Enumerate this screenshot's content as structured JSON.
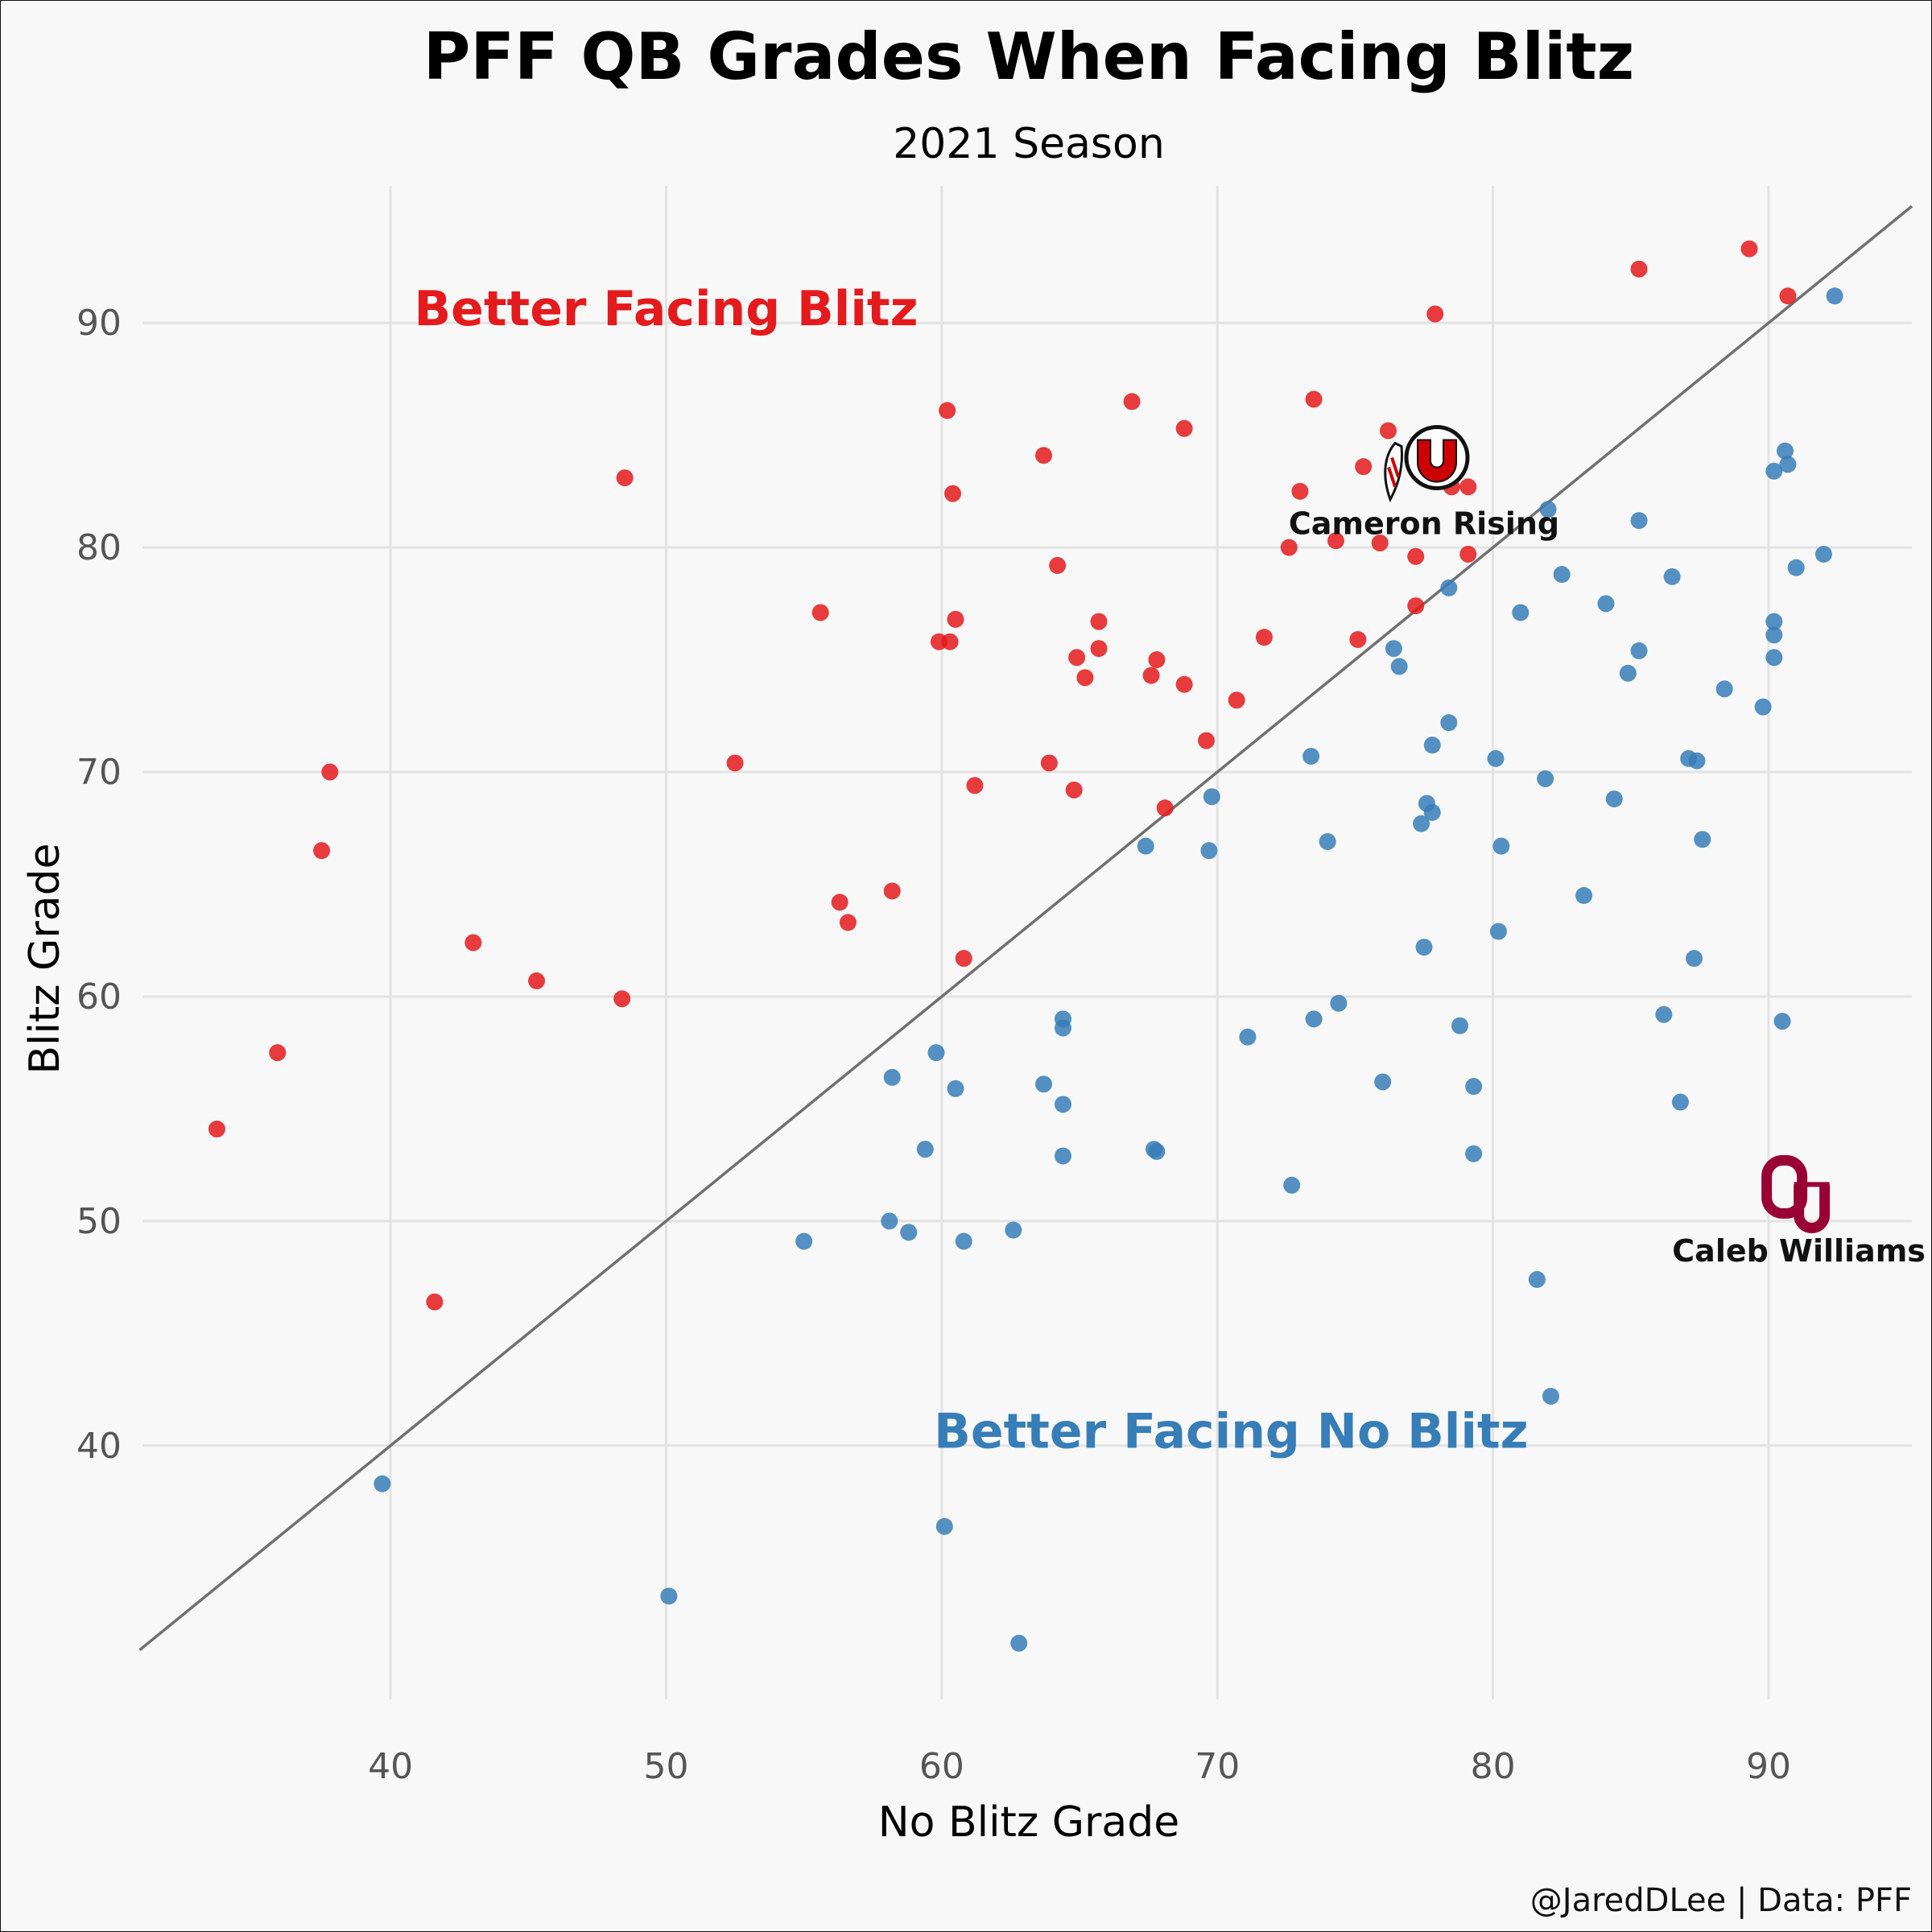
{
  "colors": {
    "better_blitz": "#e41a1c",
    "better_no_blitz": "#377eb8",
    "utah": "#cc0000",
    "oklahoma": "#990033"
  },
  "chart_data": {
    "type": "scatter",
    "title": "PFF QB Grades When Facing Blitz",
    "subtitle": "2021 Season",
    "xlabel": "No Blitz Grade",
    "ylabel": "Blitz Grade",
    "xlim": [
      31,
      95.2
    ],
    "ylim": [
      28.7,
      96.1
    ],
    "xticks": [
      40,
      50,
      60,
      70,
      80,
      90
    ],
    "yticks": [
      40,
      50,
      60,
      70,
      80,
      90
    ],
    "grid": true,
    "reference_line": "y = x",
    "series": [
      {
        "name": "Better Facing Blitz",
        "color": "#e41a1c",
        "points": [
          [
            33.7,
            54.1
          ],
          [
            35.9,
            57.5
          ],
          [
            37.5,
            66.5
          ],
          [
            37.8,
            70.0
          ],
          [
            41.6,
            46.4
          ],
          [
            43.0,
            62.4
          ],
          [
            45.3,
            60.7
          ],
          [
            48.4,
            59.9
          ],
          [
            48.5,
            83.1
          ],
          [
            52.5,
            70.4
          ],
          [
            55.6,
            77.1
          ],
          [
            56.3,
            64.2
          ],
          [
            56.6,
            63.3
          ],
          [
            58.2,
            64.7
          ],
          [
            59.9,
            75.8
          ],
          [
            60.2,
            86.1
          ],
          [
            60.3,
            75.8
          ],
          [
            60.4,
            82.4
          ],
          [
            60.5,
            76.8
          ],
          [
            60.8,
            61.7
          ],
          [
            61.2,
            69.4
          ],
          [
            63.7,
            84.1
          ],
          [
            63.9,
            70.4
          ],
          [
            64.2,
            79.2
          ],
          [
            64.8,
            69.2
          ],
          [
            64.9,
            75.1
          ],
          [
            65.2,
            74.2
          ],
          [
            65.7,
            76.7
          ],
          [
            65.7,
            75.5
          ],
          [
            66.9,
            86.5
          ],
          [
            67.6,
            74.3
          ],
          [
            67.8,
            75.0
          ],
          [
            68.1,
            68.4
          ],
          [
            68.8,
            85.3
          ],
          [
            68.8,
            73.9
          ],
          [
            69.6,
            71.4
          ],
          [
            70.7,
            73.2
          ],
          [
            71.7,
            76.0
          ],
          [
            72.6,
            80.0
          ],
          [
            73.0,
            82.5
          ],
          [
            73.5,
            86.6
          ],
          [
            74.3,
            80.3
          ],
          [
            75.1,
            75.9
          ],
          [
            75.3,
            83.6
          ],
          [
            75.9,
            80.2
          ],
          [
            76.2,
            85.2
          ],
          [
            77.2,
            79.6
          ],
          [
            77.2,
            77.4
          ],
          [
            77.9,
            90.4
          ],
          [
            78.5,
            82.7
          ],
          [
            79.1,
            82.7
          ],
          [
            79.1,
            79.7
          ],
          [
            85.3,
            92.4
          ],
          [
            89.3,
            93.3
          ],
          [
            90.7,
            91.2
          ]
        ]
      },
      {
        "name": "Better Facing No Blitz",
        "color": "#377eb8",
        "points": [
          [
            39.7,
            38.3
          ],
          [
            50.1,
            33.3
          ],
          [
            55.0,
            49.1
          ],
          [
            58.1,
            50.0
          ],
          [
            58.2,
            56.4
          ],
          [
            58.8,
            49.5
          ],
          [
            59.4,
            53.2
          ],
          [
            59.8,
            57.5
          ],
          [
            60.1,
            36.4
          ],
          [
            60.5,
            55.9
          ],
          [
            60.8,
            49.1
          ],
          [
            62.6,
            49.6
          ],
          [
            62.8,
            31.2
          ],
          [
            63.7,
            56.1
          ],
          [
            64.4,
            59.0
          ],
          [
            64.4,
            58.6
          ],
          [
            64.4,
            55.2
          ],
          [
            64.4,
            52.9
          ],
          [
            67.4,
            66.7
          ],
          [
            67.7,
            53.2
          ],
          [
            67.8,
            53.1
          ],
          [
            69.7,
            66.5
          ],
          [
            69.8,
            68.9
          ],
          [
            71.1,
            58.2
          ],
          [
            72.7,
            51.6
          ],
          [
            73.4,
            70.7
          ],
          [
            73.5,
            59.0
          ],
          [
            74.0,
            66.9
          ],
          [
            74.4,
            59.7
          ],
          [
            76.0,
            56.2
          ],
          [
            76.4,
            75.5
          ],
          [
            76.6,
            74.7
          ],
          [
            77.4,
            67.7
          ],
          [
            77.5,
            62.2
          ],
          [
            77.6,
            68.6
          ],
          [
            77.8,
            71.2
          ],
          [
            77.8,
            68.2
          ],
          [
            78.4,
            78.2
          ],
          [
            78.4,
            72.2
          ],
          [
            78.8,
            58.7
          ],
          [
            79.3,
            56.0
          ],
          [
            79.3,
            53.0
          ],
          [
            80.1,
            70.6
          ],
          [
            80.2,
            62.9
          ],
          [
            80.3,
            66.7
          ],
          [
            81.0,
            77.1
          ],
          [
            81.6,
            47.4
          ],
          [
            81.9,
            69.7
          ],
          [
            82.0,
            81.7
          ],
          [
            82.1,
            42.2
          ],
          [
            82.5,
            78.8
          ],
          [
            83.3,
            64.5
          ],
          [
            84.1,
            77.5
          ],
          [
            84.4,
            68.8
          ],
          [
            84.9,
            74.4
          ],
          [
            85.3,
            81.2
          ],
          [
            85.3,
            75.4
          ],
          [
            86.2,
            59.2
          ],
          [
            86.5,
            78.7
          ],
          [
            86.8,
            55.3
          ],
          [
            87.1,
            70.6
          ],
          [
            87.3,
            61.7
          ],
          [
            87.4,
            70.5
          ],
          [
            87.6,
            67.0
          ],
          [
            88.4,
            73.7
          ],
          [
            89.8,
            72.9
          ],
          [
            90.2,
            83.4
          ],
          [
            90.2,
            76.7
          ],
          [
            90.2,
            76.1
          ],
          [
            90.2,
            75.1
          ],
          [
            90.5,
            58.9
          ],
          [
            90.6,
            84.3
          ],
          [
            90.7,
            83.7
          ],
          [
            91.0,
            79.1
          ],
          [
            92.0,
            79.7
          ],
          [
            92.4,
            91.2
          ]
        ]
      }
    ],
    "quadrant_labels": [
      {
        "text": "Better Facing Blitz",
        "x": 50.0,
        "y": 89.9,
        "color": "#e41a1c"
      },
      {
        "text": "Better Facing No Blitz",
        "x": 70.5,
        "y": 39.9,
        "color": "#377eb8"
      }
    ],
    "highlights": [
      {
        "name": "Cameron Rising",
        "team_logo": "utah-utes-logo",
        "x": 77.5,
        "y": 84.0,
        "label_x": 77.5,
        "label_y": 80.6
      },
      {
        "name": "Caleb Williams",
        "team_logo": "oklahoma-sooners-logo",
        "x": 91.1,
        "y": 51.2,
        "label_x": 91.1,
        "label_y": 48.2
      }
    ],
    "caption": "@JaredDLee | Data: PFF"
  }
}
